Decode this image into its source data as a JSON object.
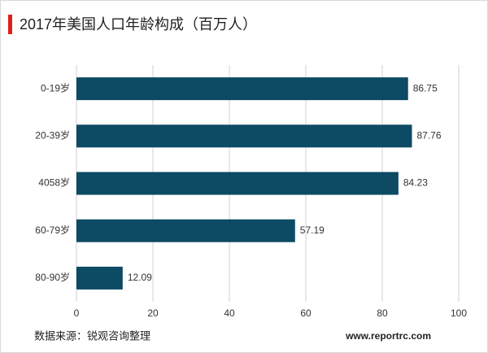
{
  "chart_data": {
    "type": "bar",
    "orientation": "horizontal",
    "title": "2017年美国人口年龄构成（百万人）",
    "categories": [
      "0-19岁",
      "20-39岁",
      "4058岁",
      "60-79岁",
      "80-90岁"
    ],
    "values": [
      86.75,
      87.76,
      84.23,
      57.19,
      12.09
    ],
    "color": "#0d4a63",
    "xlim": [
      0,
      100
    ],
    "xticks": [
      0,
      20,
      40,
      60,
      80,
      100
    ],
    "grid": true,
    "source": "数据来源：锐观咨询整理",
    "website": "www.reportrc.com"
  }
}
